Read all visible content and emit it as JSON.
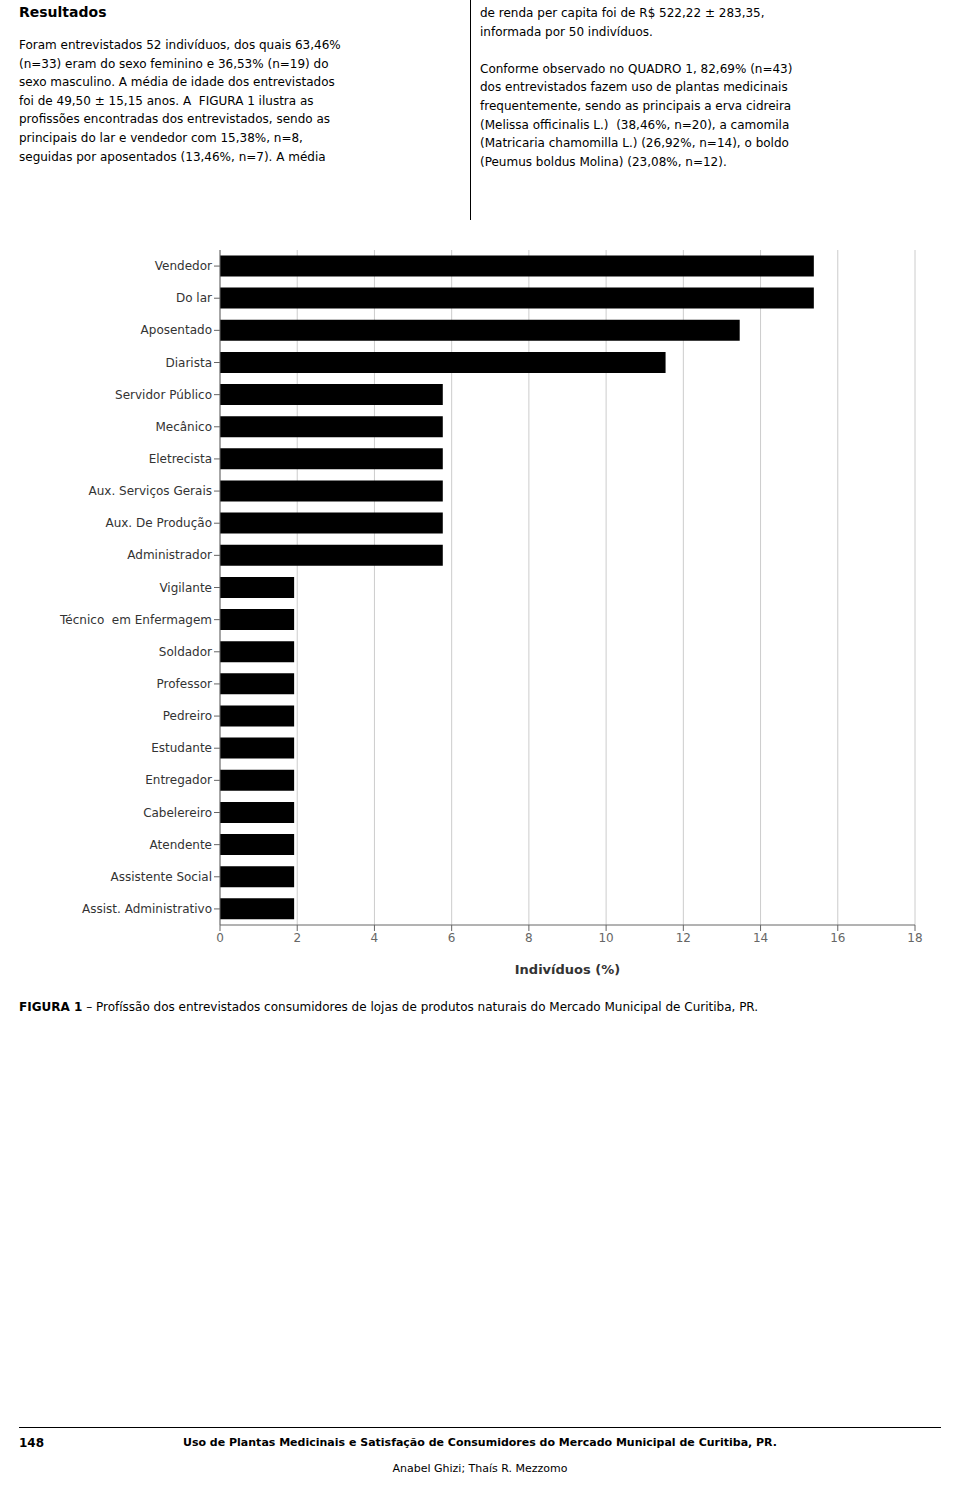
{
  "chart_data": {
    "type": "bar",
    "orientation": "horizontal",
    "categories": [
      "Vendedor",
      "Do lar",
      "Aposentado",
      "Diarista",
      "Servidor Público",
      "Mecânico",
      "Eletrecista",
      "Aux. Serviços Gerais",
      "Aux. De Produção",
      "Administrador",
      "Vigilante",
      "Técnico  em Enfermagem",
      "Soldador",
      "Professor",
      "Pedreiro",
      "Estudante",
      "Entregador",
      "Cabelereiro",
      "Atendente",
      "Assistente Social",
      "Assist. Administrativo"
    ],
    "values": [
      15.38,
      15.38,
      13.46,
      11.54,
      5.77,
      5.77,
      5.77,
      5.77,
      5.77,
      5.77,
      1.92,
      1.92,
      1.92,
      1.92,
      1.92,
      1.92,
      1.92,
      1.92,
      1.92,
      1.92,
      1.92
    ],
    "color": "#000000",
    "xlabel": "Indivíduos (%)",
    "xlim": [
      0,
      18
    ],
    "xticks": [
      0,
      2,
      4,
      6,
      8,
      10,
      12,
      14,
      16,
      18
    ],
    "grid": true,
    "annotations": [
      "Resultados",
      "Foram entrevistados 52 indivíduos, dos quais 63,46%\n(n=33) eram do sexo feminino e 36,53% (n=19) do\nsexo masculino. A média de idade dos entrevistados\nfoi de 49,50 ± 15,15 anos. A  FIGURA 1 ilustra as\nprofissões encontradas dos entrevistados, sendo as\nprincipais do lar e vendedor com 15,38%, n=8,\nseguidas por aposentados (13,46%, n=7). A média",
      "de renda per capita foi de R$ 522,22 ± 283,35,\ninformada por 50 indivíduos.\n\nConforme observado no QUADRO 1, 82,69% (n=43)\ndos entrevistados fazem uso de plantas medicinais\nfrequentemente, sendo as principais a erva cidreira\n(Melissa officinalis L.)  (38,46%, n=20), a camomila\n(Matricaria chamomilla L.) (26,92%, n=14), o boldo\n(Peumus boldus Molina) (23,08%, n=12).",
      "FIGURA 1",
      " – Profíssão dos entrevistados consumidores de lojas de produtos naturais do Mercado Municipal de Curitiba, PR.",
      "148",
      "Uso de Plantas Medicinais e Satisfação de Consumidores do Mercado Municipal de Curitiba, PR.",
      "Anabel Ghizi; Thaís R. Mezzomo"
    ]
  }
}
